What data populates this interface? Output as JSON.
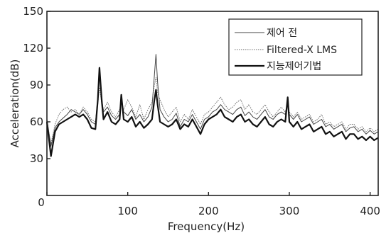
{
  "chart_data": {
    "type": "line",
    "xlabel": "Frequency(Hz)",
    "ylabel": "Acceleration(dB)",
    "xlim": [
      0,
      410
    ],
    "ylim": [
      0,
      150
    ],
    "xticks": [
      0,
      100,
      200,
      300,
      400
    ],
    "yticks": [
      30,
      60,
      90,
      120,
      150
    ],
    "grid": false,
    "legend_position": "top-right",
    "series": [
      {
        "name": "제어 전",
        "style": "thin-solid",
        "color": "#444444",
        "x": [
          0,
          5,
          10,
          15,
          20,
          25,
          30,
          35,
          40,
          45,
          50,
          55,
          60,
          63,
          65,
          68,
          70,
          75,
          80,
          85,
          90,
          92,
          95,
          100,
          105,
          110,
          115,
          120,
          125,
          130,
          133,
          135,
          137,
          140,
          145,
          150,
          155,
          160,
          165,
          170,
          175,
          180,
          185,
          190,
          195,
          200,
          205,
          210,
          215,
          220,
          225,
          230,
          235,
          240,
          245,
          250,
          255,
          260,
          265,
          270,
          275,
          280,
          285,
          290,
          295,
          298,
          300,
          305,
          310,
          315,
          320,
          325,
          330,
          335,
          340,
          345,
          350,
          355,
          360,
          365,
          370,
          375,
          380,
          385,
          390,
          395,
          400,
          405,
          410
        ],
        "y": [
          62,
          40,
          55,
          60,
          63,
          66,
          70,
          68,
          66,
          70,
          66,
          60,
          58,
          80,
          102,
          78,
          68,
          72,
          65,
          62,
          66,
          80,
          68,
          65,
          70,
          62,
          66,
          60,
          64,
          72,
          98,
          115,
          92,
          70,
          64,
          60,
          62,
          67,
          56,
          62,
          60,
          66,
          60,
          54,
          62,
          64,
          68,
          70,
          74,
          70,
          68,
          66,
          70,
          72,
          65,
          68,
          64,
          62,
          66,
          70,
          64,
          62,
          66,
          68,
          66,
          78,
          66,
          62,
          66,
          60,
          62,
          64,
          58,
          60,
          62,
          56,
          58,
          54,
          56,
          58,
          52,
          55,
          56,
          52,
          54,
          50,
          53,
          50,
          52
        ]
      },
      {
        "name": "Filtered-X LMS",
        "style": "dotted",
        "color": "#666666",
        "x": [
          0,
          5,
          10,
          15,
          20,
          25,
          30,
          35,
          40,
          45,
          50,
          55,
          60,
          63,
          65,
          68,
          70,
          75,
          80,
          85,
          90,
          92,
          95,
          100,
          105,
          110,
          115,
          120,
          125,
          130,
          133,
          135,
          137,
          140,
          145,
          150,
          155,
          160,
          165,
          170,
          175,
          180,
          185,
          190,
          195,
          200,
          205,
          210,
          215,
          220,
          225,
          230,
          235,
          240,
          245,
          250,
          255,
          260,
          265,
          270,
          275,
          280,
          285,
          290,
          295,
          298,
          300,
          305,
          310,
          315,
          320,
          325,
          330,
          335,
          340,
          345,
          350,
          355,
          360,
          365,
          370,
          375,
          380,
          385,
          390,
          395,
          400,
          405,
          410
        ],
        "y": [
          60,
          42,
          58,
          66,
          70,
          72,
          68,
          70,
          66,
          72,
          68,
          62,
          60,
          75,
          88,
          74,
          70,
          76,
          68,
          64,
          70,
          76,
          70,
          78,
          72,
          64,
          74,
          62,
          70,
          76,
          90,
          96,
          84,
          78,
          70,
          64,
          68,
          72,
          60,
          66,
          62,
          70,
          64,
          58,
          66,
          68,
          72,
          76,
          80,
          74,
          70,
          72,
          76,
          78,
          70,
          74,
          68,
          66,
          70,
          74,
          68,
          64,
          68,
          72,
          68,
          76,
          68,
          64,
          68,
          62,
          64,
          66,
          60,
          62,
          66,
          58,
          60,
          56,
          58,
          60,
          54,
          58,
          58,
          54,
          56,
          52,
          55,
          52,
          54
        ]
      },
      {
        "name": "지능제어기법",
        "style": "thick-solid",
        "color": "#111111",
        "x": [
          0,
          5,
          10,
          15,
          20,
          25,
          30,
          35,
          40,
          45,
          50,
          55,
          60,
          63,
          65,
          68,
          70,
          75,
          80,
          85,
          90,
          92,
          95,
          100,
          105,
          110,
          115,
          120,
          125,
          130,
          133,
          135,
          137,
          140,
          145,
          150,
          155,
          160,
          165,
          170,
          175,
          180,
          185,
          190,
          195,
          200,
          205,
          210,
          215,
          220,
          225,
          230,
          235,
          240,
          245,
          250,
          255,
          260,
          265,
          270,
          275,
          280,
          285,
          290,
          295,
          298,
          300,
          305,
          310,
          315,
          320,
          325,
          330,
          335,
          340,
          345,
          350,
          355,
          360,
          365,
          370,
          375,
          380,
          385,
          390,
          395,
          400,
          405,
          410
        ],
        "y": [
          60,
          32,
          52,
          58,
          60,
          62,
          64,
          66,
          64,
          66,
          62,
          55,
          54,
          78,
          104,
          76,
          62,
          68,
          60,
          58,
          62,
          82,
          62,
          60,
          64,
          56,
          60,
          55,
          58,
          62,
          78,
          86,
          74,
          60,
          58,
          56,
          58,
          62,
          54,
          58,
          56,
          62,
          56,
          50,
          58,
          62,
          64,
          66,
          70,
          64,
          62,
          60,
          64,
          66,
          60,
          62,
          58,
          56,
          60,
          64,
          58,
          56,
          60,
          62,
          60,
          80,
          60,
          56,
          60,
          54,
          56,
          58,
          52,
          54,
          56,
          50,
          52,
          48,
          50,
          52,
          46,
          50,
          50,
          46,
          48,
          45,
          48,
          45,
          47
        ]
      }
    ]
  },
  "colors": {
    "axis": "#222222",
    "background": "#ffffff"
  }
}
